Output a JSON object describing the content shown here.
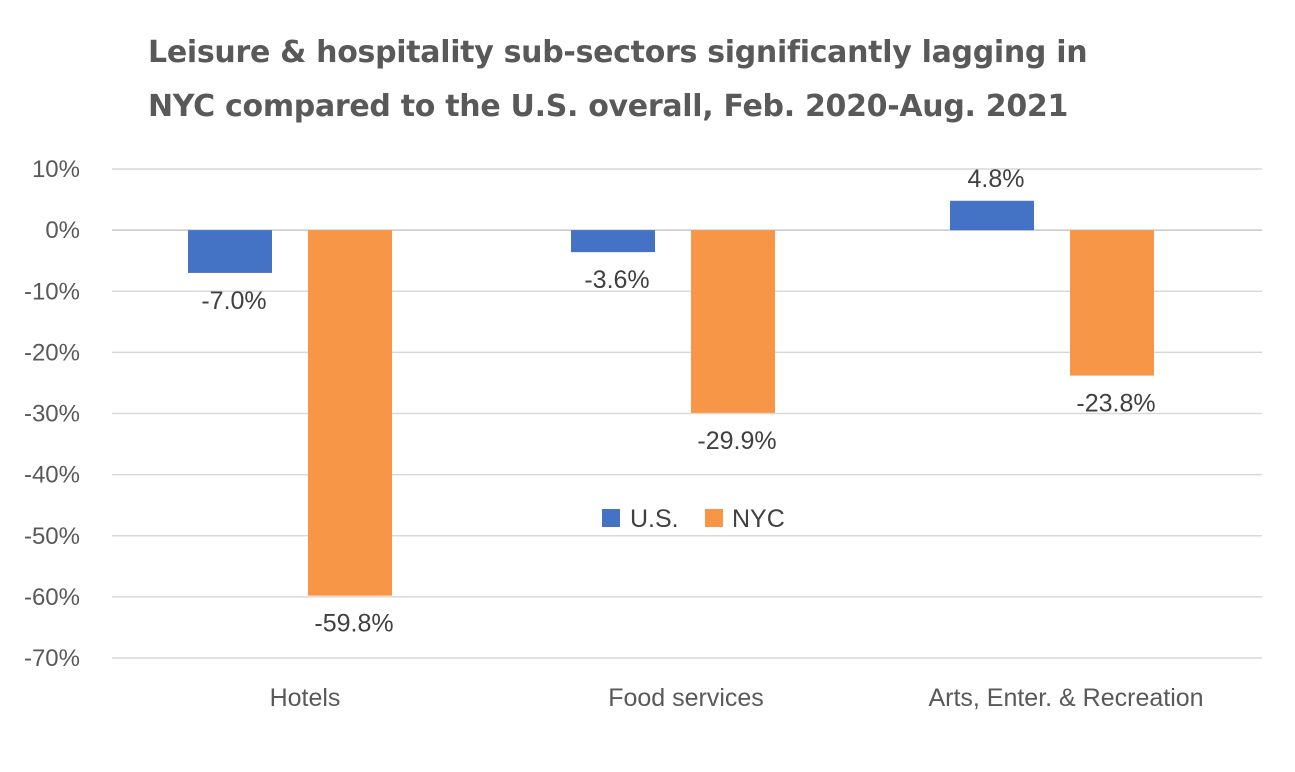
{
  "chart_data": {
    "type": "bar",
    "title_lines": [
      "Leisure & hospitality sub-sectors significantly lagging in",
      "NYC compared to the U.S. overall, Feb. 2020-Aug. 2021"
    ],
    "categories": [
      "Hotels",
      "Food services",
      "Arts, Enter. & Recreation"
    ],
    "series": [
      {
        "name": "U.S.",
        "color": "#4472C4",
        "values": [
          -7.0,
          -3.6,
          4.8
        ],
        "labels": [
          "-7.0%",
          "-3.6%",
          "4.8%"
        ]
      },
      {
        "name": "NYC",
        "color": "#F79646",
        "values": [
          -59.8,
          -29.9,
          -23.8
        ],
        "labels": [
          "-59.8%",
          "-29.9%",
          "-23.8%"
        ]
      }
    ],
    "y_ticks": [
      10,
      0,
      -10,
      -20,
      -30,
      -40,
      -50,
      -60,
      -70
    ],
    "y_tick_labels": [
      "10%",
      "0%",
      "-10%",
      "-20%",
      "-30%",
      "-40%",
      "-50%",
      "-60%",
      "-70%"
    ],
    "ylim": [
      -70,
      10
    ],
    "unit": "%",
    "grid": true,
    "legend_position": "center"
  }
}
